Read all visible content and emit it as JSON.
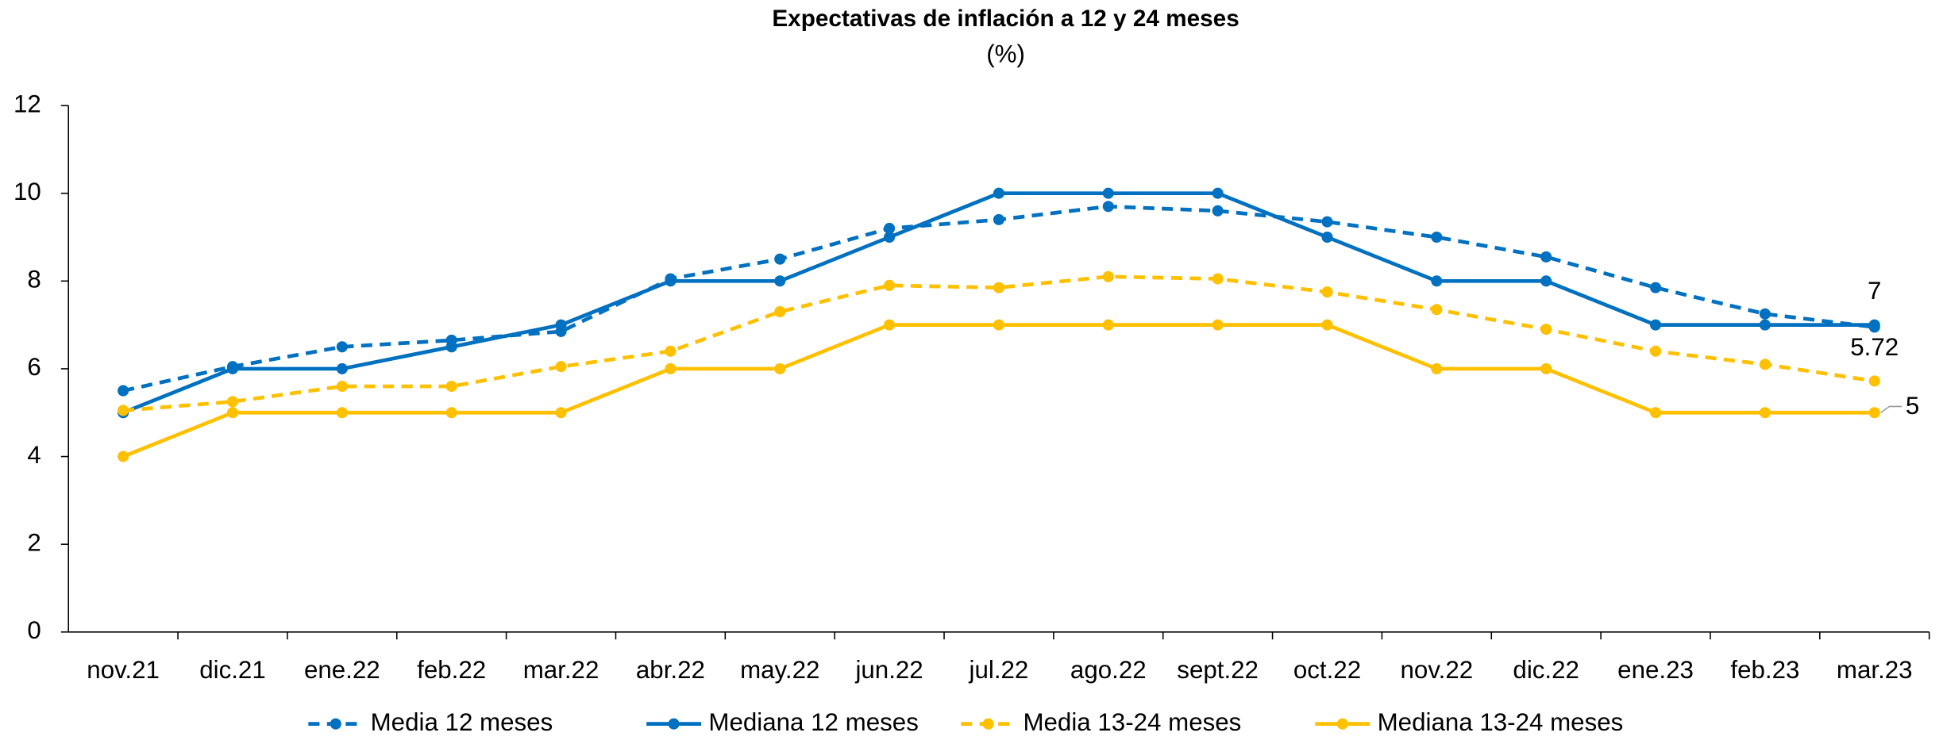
{
  "chart_data": {
    "type": "line",
    "title": "Expectativas de inflación a 12 y 24 meses",
    "subtitle": "(%)",
    "categories": [
      "nov.21",
      "dic.21",
      "ene.22",
      "feb.22",
      "mar.22",
      "abr.22",
      "may.22",
      "jun.22",
      "jul.22",
      "ago.22",
      "sept.22",
      "oct.22",
      "nov.22",
      "dic.22",
      "ene.23",
      "feb.23",
      "mar.23"
    ],
    "series": [
      {
        "name": "Media 12 meses",
        "color": "#0070c0",
        "dashed": true,
        "values": [
          5.5,
          6.05,
          6.5,
          6.65,
          6.85,
          8.05,
          8.5,
          9.2,
          9.4,
          9.7,
          9.6,
          9.35,
          9.0,
          8.55,
          7.85,
          7.25,
          6.95
        ]
      },
      {
        "name": "Mediana 12 meses",
        "color": "#0070c0",
        "dashed": false,
        "label_last": true,
        "values": [
          5,
          6,
          6,
          6.5,
          7,
          8,
          8,
          9,
          10,
          10,
          10,
          9,
          8,
          8,
          7,
          7,
          7
        ]
      },
      {
        "name": "Media 13-24 meses",
        "color": "#ffc000",
        "dashed": true,
        "label_last": true,
        "values": [
          5.05,
          5.25,
          5.6,
          5.6,
          6.05,
          6.4,
          7.3,
          7.9,
          7.85,
          8.1,
          8.05,
          7.75,
          7.35,
          6.9,
          6.4,
          6.1,
          5.72
        ]
      },
      {
        "name": "Mediana 13-24  meses",
        "color": "#ffc000",
        "dashed": false,
        "label_last": true,
        "values": [
          4,
          5,
          5,
          5,
          5,
          6,
          6,
          7,
          7,
          7,
          7,
          7,
          6,
          6,
          5,
          5,
          5
        ]
      }
    ],
    "ylim": [
      0,
      12
    ],
    "yticks": [
      0,
      2,
      4,
      6,
      8,
      10,
      12
    ],
    "grid": false,
    "legend": "bottom"
  }
}
